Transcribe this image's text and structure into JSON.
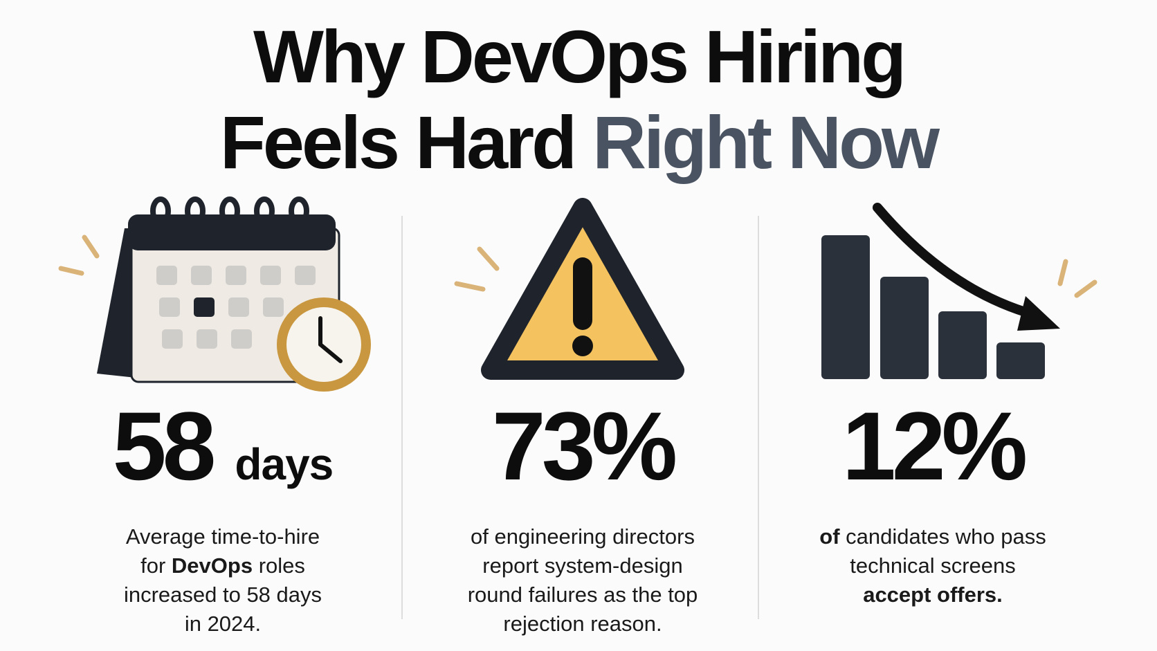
{
  "title": {
    "line1": "Why DevOps Hiring",
    "line2": "Feels Hard",
    "highlight": "Right Now"
  },
  "stats": [
    {
      "value": "58",
      "unit": "days",
      "lines": [
        [
          {
            "text": "Average time-to-hire"
          }
        ],
        [
          {
            "text": "for "
          },
          {
            "text": "DevOps",
            "bold": true
          },
          {
            "text": " roles"
          }
        ],
        [
          {
            "text": "increased to 58 days"
          }
        ],
        [
          {
            "text": "in 2024."
          }
        ]
      ]
    },
    {
      "value": "73%",
      "lines": [
        [
          {
            "text": "of engineering directors"
          }
        ],
        [
          {
            "text": "report system-design"
          }
        ],
        [
          {
            "text": "round failures as the top"
          }
        ],
        [
          {
            "text": "rejection reason."
          }
        ]
      ]
    },
    {
      "value": "12%",
      "lines": [
        [
          {
            "text": "of",
            "bold": true
          },
          {
            "text": " candidates who pass"
          }
        ],
        [
          {
            "text": "technical screens"
          }
        ],
        [
          {
            "text": "accept offers.",
            "bold": true
          }
        ]
      ]
    }
  ]
}
